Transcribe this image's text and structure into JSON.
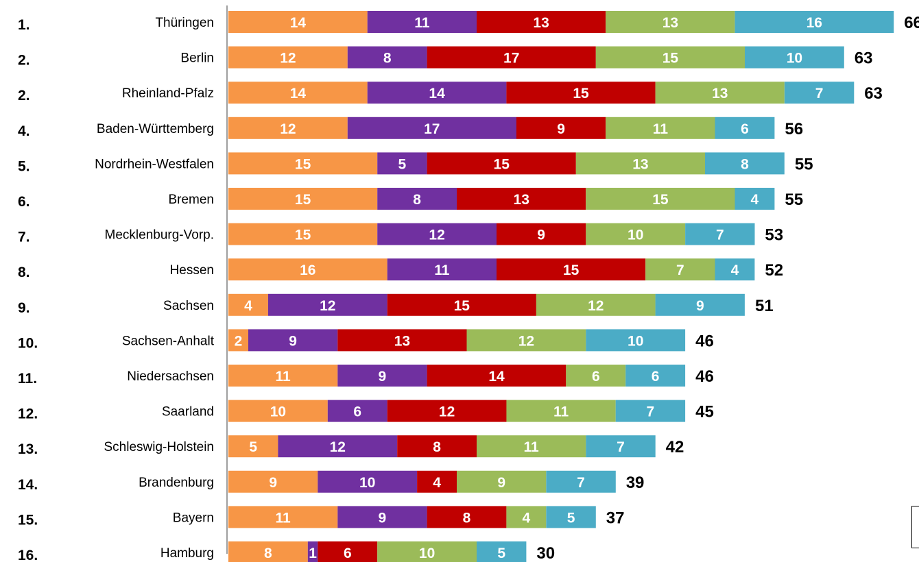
{
  "chart_data": {
    "type": "bar",
    "orientation": "horizontal",
    "stacked": true,
    "title": "",
    "xlabel": "",
    "ylabel": "",
    "xlim": [
      0,
      66
    ],
    "grid": false,
    "colors": [
      "#F79646",
      "#7030A0",
      "#C00000",
      "#9BBB59",
      "#4BACC6"
    ],
    "ranks": [
      "1.",
      "2.",
      "2.",
      "4.",
      "5.",
      "6.",
      "7.",
      "8.",
      "9.",
      "10.",
      "11.",
      "12.",
      "13.",
      "14.",
      "15.",
      "16."
    ],
    "categories": [
      "Thüringen",
      "Berlin",
      "Rheinland-Pfalz",
      "Baden-Württemberg",
      "Nordrhein-Westfalen",
      "Bremen",
      "Mecklenburg-Vorp.",
      "Hessen",
      "Sachsen",
      "Sachsen-Anhalt",
      "Niedersachsen",
      "Saarland",
      "Schleswig-Holstein",
      "Brandenburg",
      "Bayern",
      "Hamburg"
    ],
    "series": [
      {
        "values": [
          14,
          12,
          14,
          12,
          15,
          15,
          15,
          16,
          4,
          2,
          11,
          10,
          5,
          9,
          11,
          8
        ]
      },
      {
        "values": [
          11,
          8,
          14,
          17,
          5,
          8,
          12,
          11,
          12,
          9,
          9,
          6,
          12,
          10,
          9,
          1
        ]
      },
      {
        "values": [
          13,
          17,
          15,
          9,
          15,
          13,
          9,
          15,
          15,
          13,
          14,
          12,
          8,
          4,
          8,
          6
        ]
      },
      {
        "values": [
          13,
          15,
          13,
          11,
          13,
          15,
          10,
          7,
          12,
          12,
          6,
          11,
          11,
          9,
          4,
          10
        ]
      },
      {
        "values": [
          16,
          10,
          7,
          6,
          8,
          4,
          7,
          4,
          9,
          10,
          6,
          7,
          7,
          7,
          5,
          5
        ]
      }
    ],
    "totals": [
      66,
      63,
      63,
      56,
      55,
      55,
      53,
      52,
      51,
      46,
      46,
      45,
      42,
      39,
      37,
      30
    ]
  }
}
